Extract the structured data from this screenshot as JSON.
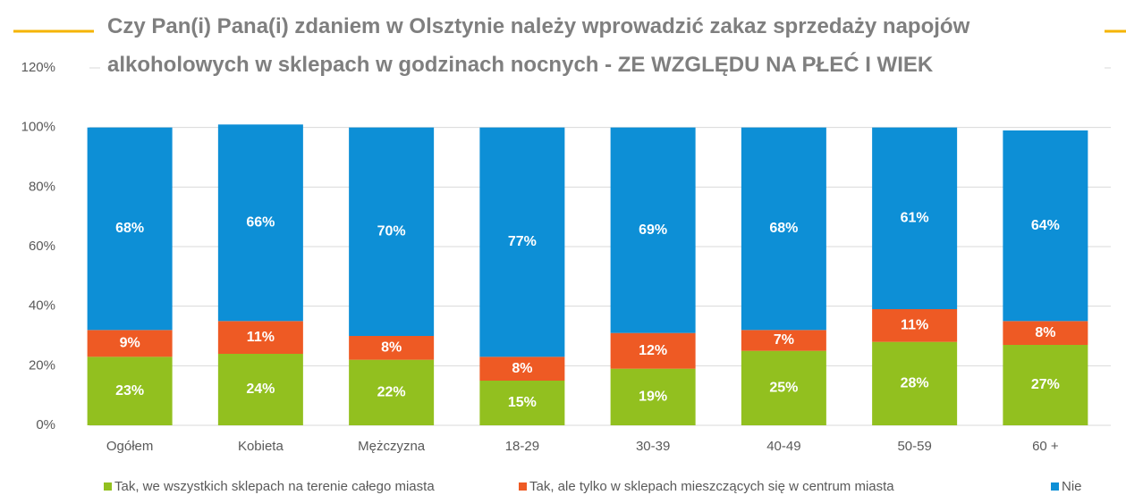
{
  "chart_data": {
    "type": "stacked_bar",
    "title": "Czy Pan(i) Pana(i) zdaniem w Olsztynie należy wprowadzić zakaz sprzedaży napojów alkoholowych w sklepach w godzinach nocnych - ZE WZGLĘDU NA PŁEĆ I WIEK",
    "categories": [
      "Ogółem",
      "Kobieta",
      "Mężczyzna",
      "18-29",
      "30-39",
      "40-49",
      "50-59",
      "60 +"
    ],
    "series": [
      {
        "name": "Tak, we wszystkich sklepach na terenie całego miasta",
        "color": "#92c01f",
        "values": [
          23,
          24,
          22,
          15,
          19,
          25,
          28,
          27
        ],
        "value_labels": [
          "23%",
          "24%",
          "22%",
          "15%",
          "19%",
          "25%",
          "28%",
          "27%"
        ]
      },
      {
        "name": "Tak, ale tylko w sklepach mieszczących się w centrum miasta",
        "color": "#ee5a24",
        "values": [
          9,
          11,
          8,
          8,
          12,
          7,
          11,
          8
        ],
        "value_labels": [
          "9%",
          "11%",
          "8%",
          "8%",
          "12%",
          "7%",
          "11%",
          "8%"
        ]
      },
      {
        "name": "Nie",
        "color": "#0d8fd6",
        "values": [
          68,
          66,
          70,
          77,
          69,
          68,
          61,
          64
        ],
        "value_labels": [
          "68%",
          "66%",
          "70%",
          "77%",
          "69%",
          "68%",
          "61%",
          "64%"
        ]
      }
    ],
    "ylim": [
      0,
      120
    ],
    "yticks": [
      {
        "value": 0,
        "label": "0%"
      },
      {
        "value": 20,
        "label": "20%"
      },
      {
        "value": 40,
        "label": "40%"
      },
      {
        "value": 60,
        "label": "60%"
      },
      {
        "value": 80,
        "label": "80%"
      },
      {
        "value": 100,
        "label": "100%"
      },
      {
        "value": 120,
        "label": "120%"
      }
    ],
    "grid": true
  }
}
